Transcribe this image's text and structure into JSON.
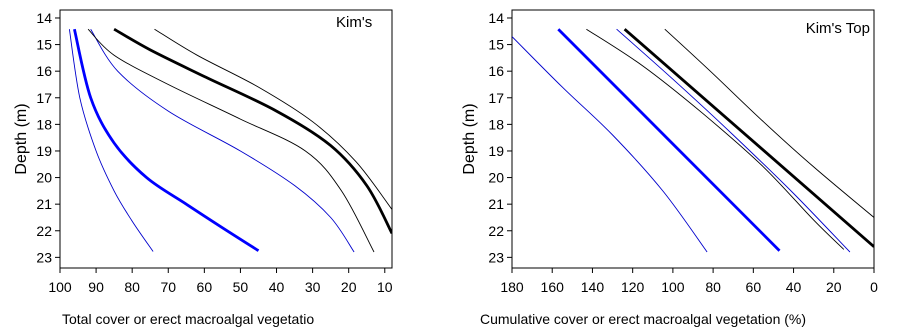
{
  "chart_data": [
    {
      "type": "line",
      "title": "Kim's",
      "xlabel": "Total cover or erect macroalgal vegetatio",
      "ylabel": "Depth (m)",
      "xlim": [
        100,
        8
      ],
      "ylim": [
        13.7,
        23.4
      ],
      "x_ticks": [
        "100",
        "90",
        "80",
        "70",
        "60",
        "50",
        "40",
        "30",
        "20",
        "10"
      ],
      "y_ticks": [
        "14",
        "15",
        "16",
        "17",
        "18",
        "19",
        "20",
        "21",
        "22",
        "23"
      ],
      "grid": false,
      "legend": "none",
      "series": [
        {
          "color": "#0000cc",
          "width": "thin",
          "x": [
            97.4,
            94.5,
            90.0,
            85.0,
            80.2,
            74.2
          ],
          "y": [
            14.42,
            17.0,
            19.0,
            20.5,
            21.6,
            22.78
          ]
        },
        {
          "color": "#0000ff",
          "width": "thick",
          "x": [
            96.0,
            91.5,
            85.0,
            76.0,
            65.0,
            56.0,
            45.0
          ],
          "y": [
            14.42,
            17.0,
            18.7,
            20.0,
            21.0,
            21.8,
            22.75
          ]
        },
        {
          "color": "#0000cc",
          "width": "thin",
          "x": [
            91.5,
            84.0,
            70.0,
            50.0,
            35.0,
            25.0,
            18.5
          ],
          "y": [
            14.42,
            16.0,
            17.5,
            19.0,
            20.3,
            21.5,
            22.8
          ]
        },
        {
          "color": "#000000",
          "width": "thin",
          "x": [
            92.2,
            85.0,
            70.0,
            50.0,
            32.0,
            22.0,
            13.0
          ],
          "y": [
            14.42,
            15.4,
            16.5,
            17.8,
            19.0,
            20.5,
            22.8
          ]
        },
        {
          "color": "#000000",
          "width": "thick",
          "x": [
            85.0,
            75.0,
            60.0,
            40.0,
            25.0,
            15.0,
            8.0
          ],
          "y": [
            14.42,
            15.2,
            16.2,
            17.5,
            18.8,
            20.3,
            22.1
          ]
        },
        {
          "color": "#000000",
          "width": "thin",
          "x": [
            73.8,
            62.0,
            45.0,
            30.0,
            18.0,
            8.0
          ],
          "y": [
            14.42,
            15.4,
            16.6,
            17.9,
            19.4,
            21.2
          ]
        }
      ]
    },
    {
      "type": "line",
      "title": "Kim's Top",
      "xlabel": "Cumulative cover or erect macroalgal vegetation (%)",
      "ylabel": "Depth (m)",
      "xlim": [
        180,
        0
      ],
      "ylim": [
        13.7,
        23.4
      ],
      "x_ticks": [
        "180",
        "160",
        "140",
        "120",
        "100",
        "80",
        "60",
        "40",
        "20",
        "0"
      ],
      "y_ticks": [
        "14",
        "15",
        "16",
        "17",
        "18",
        "19",
        "20",
        "21",
        "22",
        "23"
      ],
      "grid": false,
      "legend": "none",
      "series": [
        {
          "color": "#0000cc",
          "width": "thin",
          "x": [
            180.0,
            155.0,
            130.0,
            105.0,
            83.0
          ],
          "y": [
            14.7,
            16.6,
            18.4,
            20.5,
            22.8
          ]
        },
        {
          "color": "#0000ff",
          "width": "thick",
          "x": [
            157.0,
            47.0
          ],
          "y": [
            14.42,
            22.75
          ]
        },
        {
          "color": "#0000cc",
          "width": "thin",
          "x": [
            128.0,
            100.0,
            70.0,
            40.0,
            12.0
          ],
          "y": [
            14.42,
            16.3,
            18.4,
            20.6,
            22.8
          ]
        },
        {
          "color": "#000000",
          "width": "thin",
          "x": [
            143.0,
            115.0,
            85.0,
            55.0,
            30.0,
            15.0
          ],
          "y": [
            14.42,
            15.8,
            17.6,
            19.6,
            21.6,
            22.7
          ]
        },
        {
          "color": "#000000",
          "width": "thick",
          "x": [
            124.0,
            0.0
          ],
          "y": [
            14.42,
            22.6
          ]
        },
        {
          "color": "#000000",
          "width": "thin",
          "x": [
            104.0,
            80.0,
            55.0,
            30.0,
            0.0
          ],
          "y": [
            14.42,
            16.1,
            17.9,
            19.6,
            21.5
          ]
        }
      ]
    }
  ]
}
